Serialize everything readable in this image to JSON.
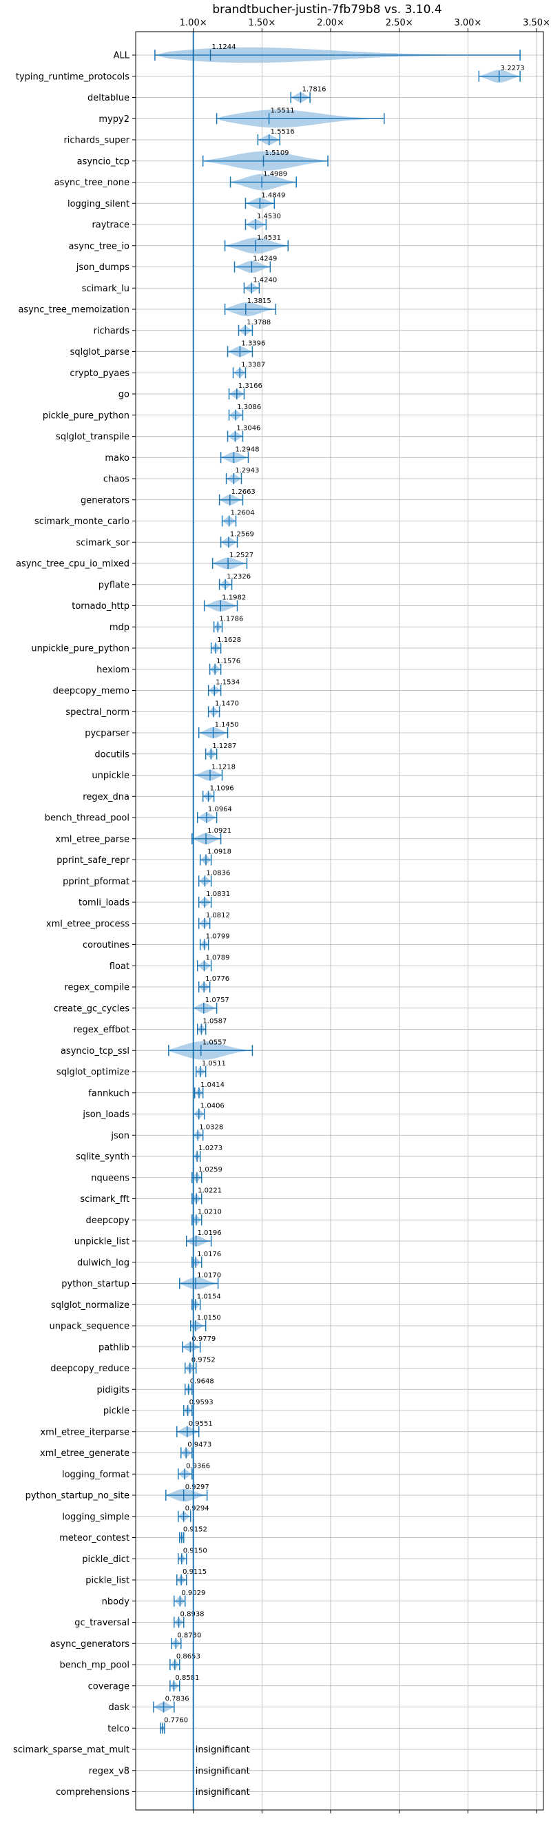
{
  "chart_data": {
    "type": "violin",
    "title": "brandtbucher-justin-7fb79b8 vs. 3.10.4",
    "x_ticks": [
      "1.00×",
      "1.50×",
      "2.00×",
      "2.50×",
      "3.00×",
      "3.50×"
    ],
    "x_tick_values": [
      1.0,
      1.5,
      2.0,
      2.5,
      3.0,
      3.5
    ],
    "xlim": [
      0.58,
      3.55
    ],
    "reference_line": 1.0,
    "grid": true,
    "colors": {
      "violin": "#9ec4e5",
      "line": "#1f77b4",
      "grid": "#b0b0b0"
    },
    "benchmarks": [
      {
        "name": "ALL",
        "value": 1.1244,
        "label": "1.1244",
        "min": 0.72,
        "max": 3.38
      },
      {
        "name": "typing_runtime_protocols",
        "value": 3.2273,
        "label": "3.2273",
        "min": 3.08,
        "max": 3.38
      },
      {
        "name": "deltablue",
        "value": 1.7816,
        "label": "1.7816",
        "min": 1.71,
        "max": 1.85
      },
      {
        "name": "mypy2",
        "value": 1.5511,
        "label": "1.5511",
        "min": 1.17,
        "max": 2.39
      },
      {
        "name": "richards_super",
        "value": 1.5516,
        "label": "1.5516",
        "min": 1.47,
        "max": 1.63
      },
      {
        "name": "asyncio_tcp",
        "value": 1.5109,
        "label": "1.5109",
        "min": 1.07,
        "max": 1.98
      },
      {
        "name": "async_tree_none",
        "value": 1.4989,
        "label": "1.4989",
        "min": 1.27,
        "max": 1.75
      },
      {
        "name": "logging_silent",
        "value": 1.4849,
        "label": "1.4849",
        "min": 1.38,
        "max": 1.59
      },
      {
        "name": "raytrace",
        "value": 1.453,
        "label": "1.4530",
        "min": 1.38,
        "max": 1.53
      },
      {
        "name": "async_tree_io",
        "value": 1.4531,
        "label": "1.4531",
        "min": 1.23,
        "max": 1.69
      },
      {
        "name": "json_dumps",
        "value": 1.4249,
        "label": "1.4249",
        "min": 1.3,
        "max": 1.56
      },
      {
        "name": "scimark_lu",
        "value": 1.424,
        "label": "1.4240",
        "min": 1.37,
        "max": 1.48
      },
      {
        "name": "async_tree_memoization",
        "value": 1.3815,
        "label": "1.3815",
        "min": 1.23,
        "max": 1.6
      },
      {
        "name": "richards",
        "value": 1.3788,
        "label": "1.3788",
        "min": 1.33,
        "max": 1.43
      },
      {
        "name": "sqlglot_parse",
        "value": 1.3396,
        "label": "1.3396",
        "min": 1.25,
        "max": 1.43
      },
      {
        "name": "crypto_pyaes",
        "value": 1.3387,
        "label": "1.3387",
        "min": 1.29,
        "max": 1.38
      },
      {
        "name": "go",
        "value": 1.3166,
        "label": "1.3166",
        "min": 1.26,
        "max": 1.37
      },
      {
        "name": "pickle_pure_python",
        "value": 1.3086,
        "label": "1.3086",
        "min": 1.26,
        "max": 1.36
      },
      {
        "name": "sqlglot_transpile",
        "value": 1.3046,
        "label": "1.3046",
        "min": 1.25,
        "max": 1.36
      },
      {
        "name": "mako",
        "value": 1.2948,
        "label": "1.2948",
        "min": 1.2,
        "max": 1.4
      },
      {
        "name": "chaos",
        "value": 1.2943,
        "label": "1.2943",
        "min": 1.24,
        "max": 1.35
      },
      {
        "name": "generators",
        "value": 1.2663,
        "label": "1.2663",
        "min": 1.19,
        "max": 1.36
      },
      {
        "name": "scimark_monte_carlo",
        "value": 1.2604,
        "label": "1.2604",
        "min": 1.21,
        "max": 1.31
      },
      {
        "name": "scimark_sor",
        "value": 1.2569,
        "label": "1.2569",
        "min": 1.2,
        "max": 1.32
      },
      {
        "name": "async_tree_cpu_io_mixed",
        "value": 1.2527,
        "label": "1.2527",
        "min": 1.14,
        "max": 1.39
      },
      {
        "name": "pyflate",
        "value": 1.2326,
        "label": "1.2326",
        "min": 1.19,
        "max": 1.28
      },
      {
        "name": "tornado_http",
        "value": 1.1982,
        "label": "1.1982",
        "min": 1.08,
        "max": 1.32
      },
      {
        "name": "mdp",
        "value": 1.1786,
        "label": "1.1786",
        "min": 1.15,
        "max": 1.21
      },
      {
        "name": "unpickle_pure_python",
        "value": 1.1628,
        "label": "1.1628",
        "min": 1.13,
        "max": 1.2
      },
      {
        "name": "hexiom",
        "value": 1.1576,
        "label": "1.1576",
        "min": 1.12,
        "max": 1.2
      },
      {
        "name": "deepcopy_memo",
        "value": 1.1534,
        "label": "1.1534",
        "min": 1.11,
        "max": 1.2
      },
      {
        "name": "spectral_norm",
        "value": 1.147,
        "label": "1.1470",
        "min": 1.11,
        "max": 1.19
      },
      {
        "name": "pycparser",
        "value": 1.145,
        "label": "1.1450",
        "min": 1.04,
        "max": 1.25
      },
      {
        "name": "docutils",
        "value": 1.1287,
        "label": "1.1287",
        "min": 1.09,
        "max": 1.17
      },
      {
        "name": "unpickle",
        "value": 1.1218,
        "label": "1.1218",
        "min": 1.0,
        "max": 1.21
      },
      {
        "name": "regex_dna",
        "value": 1.1096,
        "label": "1.1096",
        "min": 1.07,
        "max": 1.15
      },
      {
        "name": "bench_thread_pool",
        "value": 1.0964,
        "label": "1.0964",
        "min": 1.03,
        "max": 1.17
      },
      {
        "name": "xml_etree_parse",
        "value": 1.0921,
        "label": "1.0921",
        "min": 0.99,
        "max": 1.2
      },
      {
        "name": "pprint_safe_repr",
        "value": 1.0918,
        "label": "1.0918",
        "min": 1.05,
        "max": 1.13
      },
      {
        "name": "pprint_pformat",
        "value": 1.0836,
        "label": "1.0836",
        "min": 1.04,
        "max": 1.13
      },
      {
        "name": "tomli_loads",
        "value": 1.0831,
        "label": "1.0831",
        "min": 1.04,
        "max": 1.13
      },
      {
        "name": "xml_etree_process",
        "value": 1.0812,
        "label": "1.0812",
        "min": 1.04,
        "max": 1.12
      },
      {
        "name": "coroutines",
        "value": 1.0799,
        "label": "1.0799",
        "min": 1.05,
        "max": 1.11
      },
      {
        "name": "float",
        "value": 1.0789,
        "label": "1.0789",
        "min": 1.03,
        "max": 1.13
      },
      {
        "name": "regex_compile",
        "value": 1.0776,
        "label": "1.0776",
        "min": 1.04,
        "max": 1.12
      },
      {
        "name": "create_gc_cycles",
        "value": 1.0757,
        "label": "1.0757",
        "min": 1.0,
        "max": 1.17
      },
      {
        "name": "regex_effbot",
        "value": 1.0587,
        "label": "1.0587",
        "min": 1.03,
        "max": 1.09
      },
      {
        "name": "asyncio_tcp_ssl",
        "value": 1.0557,
        "label": "1.0557",
        "min": 0.82,
        "max": 1.43
      },
      {
        "name": "sqlglot_optimize",
        "value": 1.0511,
        "label": "1.0511",
        "min": 1.02,
        "max": 1.09
      },
      {
        "name": "fannkuch",
        "value": 1.0414,
        "label": "1.0414",
        "min": 1.01,
        "max": 1.07
      },
      {
        "name": "json_loads",
        "value": 1.0406,
        "label": "1.0406",
        "min": 1.0,
        "max": 1.08
      },
      {
        "name": "json",
        "value": 1.0328,
        "label": "1.0328",
        "min": 1.0,
        "max": 1.07
      },
      {
        "name": "sqlite_synth",
        "value": 1.0273,
        "label": "1.0273",
        "min": 1.0,
        "max": 1.05
      },
      {
        "name": "nqueens",
        "value": 1.0259,
        "label": "1.0259",
        "min": 0.99,
        "max": 1.06
      },
      {
        "name": "scimark_fft",
        "value": 1.0221,
        "label": "1.0221",
        "min": 0.99,
        "max": 1.06
      },
      {
        "name": "deepcopy",
        "value": 1.021,
        "label": "1.0210",
        "min": 0.99,
        "max": 1.06
      },
      {
        "name": "unpickle_list",
        "value": 1.0196,
        "label": "1.0196",
        "min": 0.95,
        "max": 1.13
      },
      {
        "name": "dulwich_log",
        "value": 1.0176,
        "label": "1.0176",
        "min": 0.99,
        "max": 1.06
      },
      {
        "name": "python_startup",
        "value": 1.017,
        "label": "1.0170",
        "min": 0.9,
        "max": 1.18
      },
      {
        "name": "sqlglot_normalize",
        "value": 1.0154,
        "label": "1.0154",
        "min": 0.99,
        "max": 1.05
      },
      {
        "name": "unpack_sequence",
        "value": 1.015,
        "label": "1.0150",
        "min": 0.98,
        "max": 1.09
      },
      {
        "name": "pathlib",
        "value": 0.9779,
        "label": "0.9779",
        "min": 0.92,
        "max": 1.05
      },
      {
        "name": "deepcopy_reduce",
        "value": 0.9752,
        "label": "0.9752",
        "min": 0.94,
        "max": 1.02
      },
      {
        "name": "pidigits",
        "value": 0.9648,
        "label": "0.9648",
        "min": 0.94,
        "max": 0.99
      },
      {
        "name": "pickle",
        "value": 0.9593,
        "label": "0.9593",
        "min": 0.93,
        "max": 0.99
      },
      {
        "name": "xml_etree_iterparse",
        "value": 0.9551,
        "label": "0.9551",
        "min": 0.88,
        "max": 1.04
      },
      {
        "name": "xml_etree_generate",
        "value": 0.9473,
        "label": "0.9473",
        "min": 0.91,
        "max": 0.99
      },
      {
        "name": "logging_format",
        "value": 0.9366,
        "label": "0.9366",
        "min": 0.89,
        "max": 0.99
      },
      {
        "name": "python_startup_no_site",
        "value": 0.9297,
        "label": "0.9297",
        "min": 0.8,
        "max": 1.1
      },
      {
        "name": "logging_simple",
        "value": 0.9294,
        "label": "0.9294",
        "min": 0.89,
        "max": 0.98
      },
      {
        "name": "meteor_contest",
        "value": 0.9152,
        "label": "0.9152",
        "min": 0.9,
        "max": 0.93
      },
      {
        "name": "pickle_dict",
        "value": 0.915,
        "label": "0.9150",
        "min": 0.89,
        "max": 0.95
      },
      {
        "name": "pickle_list",
        "value": 0.9115,
        "label": "0.9115",
        "min": 0.88,
        "max": 0.95
      },
      {
        "name": "nbody",
        "value": 0.9029,
        "label": "0.9029",
        "min": 0.86,
        "max": 0.94
      },
      {
        "name": "gc_traversal",
        "value": 0.8938,
        "label": "0.8938",
        "min": 0.86,
        "max": 0.93
      },
      {
        "name": "async_generators",
        "value": 0.873,
        "label": "0.8730",
        "min": 0.84,
        "max": 0.91
      },
      {
        "name": "bench_mp_pool",
        "value": 0.8653,
        "label": "0.8653",
        "min": 0.83,
        "max": 0.9
      },
      {
        "name": "coverage",
        "value": 0.8581,
        "label": "0.8581",
        "min": 0.83,
        "max": 0.9
      },
      {
        "name": "dask",
        "value": 0.7836,
        "label": "0.7836",
        "min": 0.71,
        "max": 0.86
      },
      {
        "name": "telco",
        "value": 0.776,
        "label": "0.7760",
        "min": 0.76,
        "max": 0.79
      },
      {
        "name": "scimark_sparse_mat_mult",
        "label": "insignificant"
      },
      {
        "name": "regex_v8",
        "label": "insignificant"
      },
      {
        "name": "comprehensions",
        "label": "insignificant"
      }
    ]
  }
}
